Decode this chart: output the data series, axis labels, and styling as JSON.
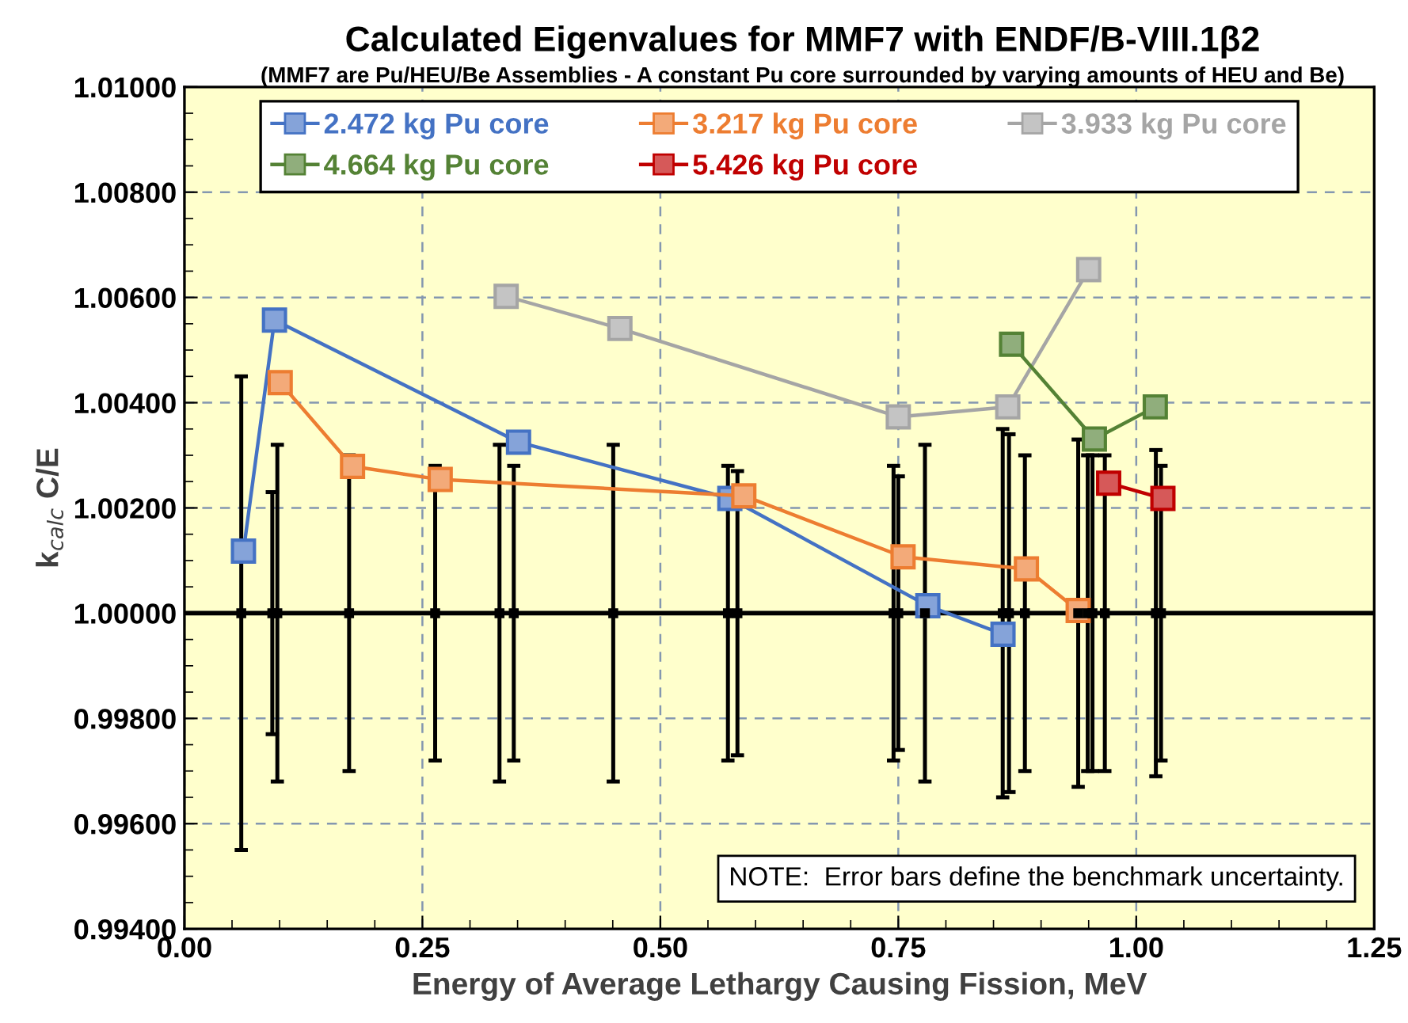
{
  "chart_data": {
    "type": "line",
    "title": "Calculated Eigenvalues for MMF7 with ENDF/B-VIII.1β2",
    "subtitle": "(MMF7 are Pu/HEU/Be Assemblies - A constant Pu core surrounded by varying amounts of HEU and Be)",
    "xlabel": "Energy of Average Lethargy Causing Fission, MeV",
    "ylabel": "k$_{calc}$ C/E",
    "xlim": [
      0,
      1.25
    ],
    "xticks": [
      {
        "value": 0,
        "label": "0.00"
      },
      {
        "value": 0.25,
        "label": "0.25"
      },
      {
        "value": 0.5,
        "label": "0.50"
      },
      {
        "value": 0.75,
        "label": "0.75"
      },
      {
        "value": 1.0,
        "label": "1.00"
      },
      {
        "value": 1.25,
        "label": "1.25"
      }
    ],
    "ylim": [
      0.994,
      1.01
    ],
    "yticks": [
      {
        "value": 0.994,
        "label": "0.99400"
      },
      {
        "value": 0.996,
        "label": "0.99600"
      },
      {
        "value": 0.998,
        "label": "0.99800"
      },
      {
        "value": 1.0,
        "label": "1.00000"
      },
      {
        "value": 1.002,
        "label": "1.00200"
      },
      {
        "value": 1.004,
        "label": "1.00400"
      },
      {
        "value": 1.006,
        "label": "1.00600"
      },
      {
        "value": 1.008,
        "label": "1.00800"
      },
      {
        "value": 1.01,
        "label": "1.01000"
      }
    ],
    "grid": true,
    "legend": "top",
    "marker": "square",
    "line_style": "solid",
    "ref_lines": [
      {
        "axis": "y",
        "value": 1.0,
        "color": "#000000"
      }
    ],
    "annotations": [
      "NOTE:  Error bars define the benchmark uncertainty."
    ],
    "series": [
      {
        "type": "scatter",
        "marker": "square",
        "color": "#000000",
        "x": [
          0.0597,
          0.0923,
          0.0976,
          0.173,
          0.2634,
          0.331,
          0.346,
          0.4505,
          0.571,
          0.581,
          0.745,
          0.75,
          0.778,
          0.8597,
          0.8663,
          0.883,
          0.939,
          0.949,
          0.954,
          0.967,
          1.0206,
          1.026
        ],
        "values": [
          1.0,
          1.0,
          1.0,
          1.0,
          1.0,
          1.0,
          1.0,
          1.0,
          1.0,
          1.0,
          1.0,
          1.0,
          1.0,
          1.0,
          1.0,
          1.0,
          1.0,
          1.0,
          1.0,
          1.0,
          1.0,
          1.0
        ],
        "errors": [
          0.0045,
          0.0023,
          0.0032,
          0.003,
          0.0028,
          0.0032,
          0.0028,
          0.0032,
          0.0028,
          0.0027,
          0.0028,
          0.0026,
          0.0032,
          0.0035,
          0.0034,
          0.003,
          0.0033,
          0.003,
          0.003,
          0.003,
          0.0031,
          0.0028
        ]
      },
      {
        "name": "2.472 kg Pu core",
        "color": "#4472c4",
        "x": [
          0.062,
          0.0946,
          0.351,
          0.573,
          0.781,
          0.86
        ],
        "values": [
          1.00118,
          1.00557,
          1.00325,
          1.00218,
          1.00014,
          0.9996
        ]
      },
      {
        "name": "3.217 kg Pu core",
        "color": "#ed7d31",
        "x": [
          0.1006,
          0.1766,
          0.2687,
          0.5877,
          0.755,
          0.8846,
          0.939
        ],
        "values": [
          1.00438,
          1.00279,
          1.00254,
          1.00223,
          1.00107,
          1.00084,
          1.00005
        ]
      },
      {
        "name": "3.933 kg Pu core",
        "color": "#a5a5a5",
        "x": [
          0.338,
          0.4575,
          0.75,
          0.865,
          0.95
        ],
        "values": [
          1.00602,
          1.00541,
          1.00373,
          1.00392,
          1.00653
        ]
      },
      {
        "name": "4.664 kg Pu core",
        "color": "#548235",
        "x": [
          0.869,
          0.956,
          1.02
        ],
        "values": [
          1.00511,
          1.00331,
          1.00392
        ]
      },
      {
        "name": "5.426 kg Pu core",
        "color": "#c00000",
        "x": [
          0.971,
          1.028
        ],
        "values": [
          1.00247,
          1.00218
        ]
      }
    ]
  }
}
